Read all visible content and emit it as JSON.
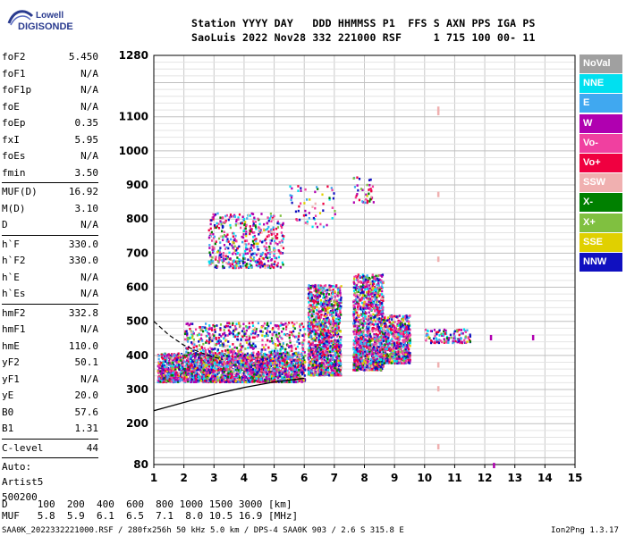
{
  "logo": {
    "line1": "Lowell",
    "line2": "DIGISONDE"
  },
  "header": {
    "labels": "Station YYYY DAY   DDD HHMMSS P1  FFS S AXN PPS IGA PS",
    "values": "SaoLuis 2022 Nov28 332 221000 RSF     1 715 100 00- 11"
  },
  "params": {
    "group1": [
      {
        "k": "foF2",
        "v": "5.450"
      },
      {
        "k": "foF1",
        "v": "N/A"
      },
      {
        "k": "foF1p",
        "v": "N/A"
      },
      {
        "k": "foE",
        "v": "N/A"
      },
      {
        "k": "foEp",
        "v": "0.35"
      },
      {
        "k": "fxI",
        "v": "5.95"
      },
      {
        "k": "foEs",
        "v": "N/A"
      },
      {
        "k": "fmin",
        "v": "3.50"
      }
    ],
    "group2": [
      {
        "k": "MUF(D)",
        "v": "16.92"
      },
      {
        "k": "M(D)",
        "v": "3.10"
      },
      {
        "k": "D",
        "v": "N/A"
      }
    ],
    "group3": [
      {
        "k": "h`F",
        "v": "330.0"
      },
      {
        "k": "h`F2",
        "v": "330.0"
      },
      {
        "k": "h`E",
        "v": "N/A"
      },
      {
        "k": "h`Es",
        "v": "N/A"
      }
    ],
    "group4": [
      {
        "k": "hmF2",
        "v": "332.8"
      },
      {
        "k": "hmF1",
        "v": "N/A"
      },
      {
        "k": "hmE",
        "v": "110.0"
      },
      {
        "k": "yF2",
        "v": "50.1"
      },
      {
        "k": "yF1",
        "v": "N/A"
      },
      {
        "k": "yE",
        "v": "20.0"
      },
      {
        "k": "B0",
        "v": "57.6"
      },
      {
        "k": "B1",
        "v": "1.31"
      }
    ],
    "clevel": {
      "k": "C-level",
      "v": "44"
    },
    "auto": [
      "Auto:",
      "Artist5",
      "500200"
    ]
  },
  "legend": [
    {
      "label": "NoVal",
      "color": "#a0a0a0"
    },
    {
      "label": "NNE",
      "color": "#00e0f0"
    },
    {
      "label": "E",
      "color": "#40a8f0"
    },
    {
      "label": "W",
      "color": "#b000b0"
    },
    {
      "label": "Vo-",
      "color": "#f040a0"
    },
    {
      "label": "Vo+",
      "color": "#f00040"
    },
    {
      "label": "SSW",
      "color": "#f0b0b0"
    },
    {
      "label": "X-",
      "color": "#008000"
    },
    {
      "label": "X+",
      "color": "#80c040"
    },
    {
      "label": "SSE",
      "color": "#e0d000"
    },
    {
      "label": "NNW",
      "color": "#1010c0"
    }
  ],
  "chart_data": {
    "type": "scatter",
    "x_ticks": [
      1,
      2,
      3,
      4,
      5,
      6,
      7,
      8,
      9,
      10,
      11,
      12,
      13,
      14,
      15
    ],
    "y_ticks": [
      80,
      200,
      300,
      400,
      500,
      600,
      700,
      800,
      900,
      1000,
      1100,
      1280
    ],
    "xlim": [
      1,
      15
    ],
    "ylim": [
      80,
      1280
    ],
    "grid": true,
    "xlabel": "",
    "ylabel": "",
    "clusters": [
      {
        "x": [
          1.1,
          6.0
        ],
        "y": [
          325,
          410
        ],
        "density": 2200
      },
      {
        "x": [
          2.0,
          6.0
        ],
        "y": [
          360,
          500
        ],
        "density": 900
      },
      {
        "x": [
          6.1,
          7.2
        ],
        "y": [
          345,
          610
        ],
        "density": 1300
      },
      {
        "x": [
          7.6,
          8.6
        ],
        "y": [
          360,
          640
        ],
        "density": 1300
      },
      {
        "x": [
          8.6,
          9.5
        ],
        "y": [
          380,
          520
        ],
        "density": 600
      },
      {
        "x": [
          10.0,
          11.5
        ],
        "y": [
          440,
          480
        ],
        "density": 120
      },
      {
        "x": [
          2.8,
          5.3
        ],
        "y": [
          660,
          820
        ],
        "density": 500
      },
      {
        "x": [
          5.5,
          7.0
        ],
        "y": [
          780,
          900
        ],
        "density": 60
      },
      {
        "x": [
          7.6,
          8.3
        ],
        "y": [
          850,
          930
        ],
        "density": 40
      }
    ],
    "sparse_points": [
      {
        "x": 10.45,
        "y": 1120,
        "c": "#f0b0b0"
      },
      {
        "x": 10.45,
        "y": 1130,
        "c": "#f0b0b0"
      },
      {
        "x": 10.45,
        "y": 880,
        "c": "#f0b0b0"
      },
      {
        "x": 10.45,
        "y": 690,
        "c": "#f0b0b0"
      },
      {
        "x": 10.45,
        "y": 380,
        "c": "#f0b0b0"
      },
      {
        "x": 10.45,
        "y": 310,
        "c": "#f0b0b0"
      },
      {
        "x": 10.45,
        "y": 140,
        "c": "#f0b0b0"
      },
      {
        "x": 12.3,
        "y": 85,
        "c": "#b000b0"
      },
      {
        "x": 13.6,
        "y": 460,
        "c": "#b000b0"
      },
      {
        "x": 12.2,
        "y": 460,
        "c": "#b000b0"
      }
    ],
    "virtual_height_curve": {
      "x": [
        1,
        2,
        3,
        4,
        5,
        6
      ],
      "y": [
        238,
        262,
        286,
        306,
        322,
        333
      ]
    },
    "dashed_curve": {
      "x": [
        1.0,
        1.5,
        2.0,
        2.5,
        3.0,
        3.3
      ],
      "y": [
        500,
        460,
        430,
        410,
        395,
        388
      ]
    }
  },
  "footer": {
    "d_line": "D     100  200  400  600  800 1000 1500 3000 [km]",
    "muf_line": "MUF   5.8  5.9  6.1  6.5  7.1  8.0 10.5 16.9 [MHz]",
    "file_line": "SAA0K_2022332221000.RSF / 280fx256h 50 kHz 5.0 km / DPS-4 SAA0K 903 / 2.6 S 315.8 E",
    "version": "Ion2Png 1.3.17"
  }
}
